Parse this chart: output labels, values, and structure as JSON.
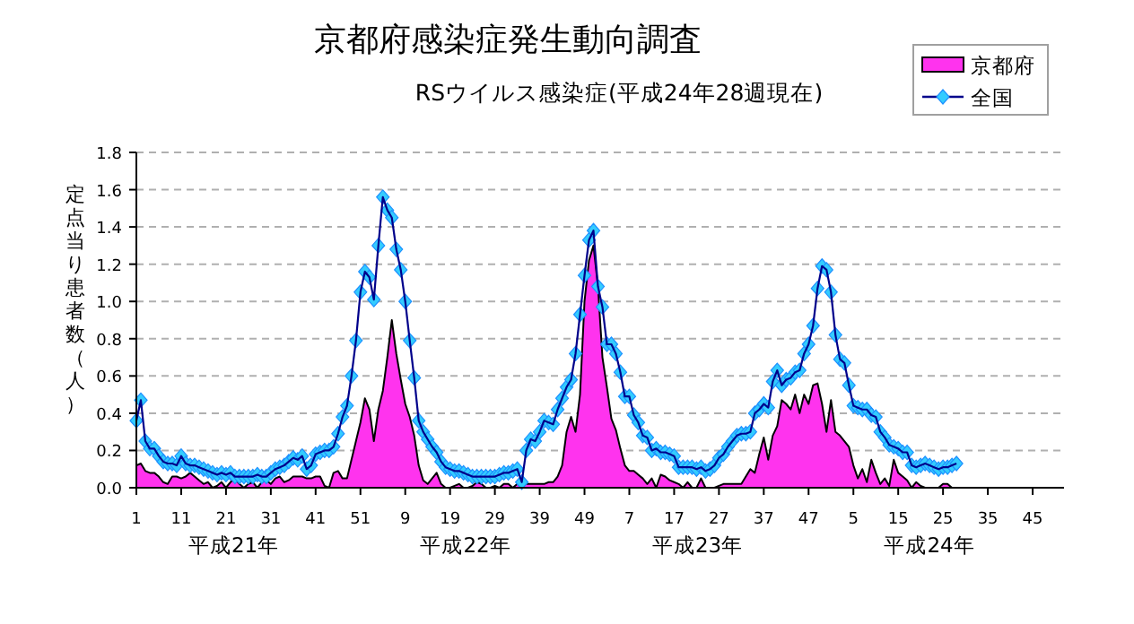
{
  "chart_data": {
    "type": "area",
    "title": "京都府感染症発生動向調査",
    "subtitle": "RSウイルス感染症(平成24年28週現在)",
    "ylabel": "定点当り患者数（人）",
    "annotations": [
      "平成21年",
      "平成22年",
      "平成23年",
      "平成24年"
    ],
    "categories": [
      "1",
      null,
      null,
      null,
      null,
      null,
      null,
      null,
      null,
      null,
      "11",
      null,
      null,
      null,
      null,
      null,
      null,
      null,
      null,
      null,
      "21",
      null,
      null,
      null,
      null,
      null,
      null,
      null,
      null,
      null,
      "31",
      null,
      null,
      null,
      null,
      null,
      null,
      null,
      null,
      null,
      "41",
      null,
      null,
      null,
      null,
      null,
      null,
      null,
      null,
      null,
      "51",
      null,
      null,
      null,
      null,
      null,
      null,
      null,
      null,
      null,
      "9",
      null,
      null,
      null,
      null,
      null,
      null,
      null,
      null,
      null,
      "19",
      null,
      null,
      null,
      null,
      null,
      null,
      null,
      null,
      null,
      "29",
      null,
      null,
      null,
      null,
      null,
      null,
      null,
      null,
      null,
      "39",
      null,
      null,
      null,
      null,
      null,
      null,
      null,
      null,
      null,
      "49",
      null,
      null,
      null,
      null,
      null,
      null,
      null,
      null,
      null,
      "7",
      null,
      null,
      null,
      null,
      null,
      null,
      null,
      null,
      null,
      "17",
      null,
      null,
      null,
      null,
      null,
      null,
      null,
      null,
      null,
      "27",
      null,
      null,
      null,
      null,
      null,
      null,
      null,
      null,
      null,
      "37",
      null,
      null,
      null,
      null,
      null,
      null,
      null,
      null,
      null,
      "47",
      null,
      null,
      null,
      null,
      null,
      null,
      null,
      null,
      null,
      "5",
      null,
      null,
      null,
      null,
      null,
      null,
      null,
      null,
      null,
      "15",
      null,
      null,
      null,
      null,
      null,
      null,
      null,
      null,
      null,
      "25",
      null,
      null,
      null,
      null,
      null,
      null,
      null,
      null,
      null,
      "35",
      null,
      null,
      null,
      null,
      null,
      null,
      null,
      null,
      null,
      "45",
      null,
      null,
      null,
      null,
      null,
      null,
      null
    ],
    "ylim": [
      0,
      1.8
    ],
    "yticks": [
      {
        "value": 0,
        "label": "0.0"
      },
      {
        "value": 0.2,
        "label": "0.2"
      },
      {
        "value": 0.4,
        "label": "0.4"
      },
      {
        "value": 0.6,
        "label": "0.6"
      },
      {
        "value": 0.8,
        "label": "0.8"
      },
      {
        "value": 1.0,
        "label": "1.0"
      },
      {
        "value": 1.2,
        "label": "1.2"
      },
      {
        "value": 1.4,
        "label": "1.4"
      },
      {
        "value": 1.6,
        "label": "1.6"
      },
      {
        "value": 1.8,
        "label": "1.8"
      }
    ],
    "grid": "y",
    "legend": "top right",
    "series": [
      {
        "name": "京都府",
        "color": "#ff33ee",
        "values": [
          0.12,
          0.13,
          0.09,
          0.08,
          0.08,
          0.06,
          0.03,
          0.02,
          0.06,
          0.06,
          0.05,
          0.06,
          0.08,
          0.06,
          0.04,
          0.02,
          0.03,
          0.0,
          0.01,
          0.03,
          0.0,
          0.03,
          0.05,
          0.02,
          0.0,
          0.02,
          0.03,
          0.0,
          0.03,
          0.04,
          0.02,
          0.05,
          0.06,
          0.03,
          0.04,
          0.06,
          0.06,
          0.06,
          0.05,
          0.05,
          0.06,
          0.06,
          0.01,
          0.0,
          0.08,
          0.09,
          0.05,
          0.05,
          0.15,
          0.25,
          0.35,
          0.48,
          0.42,
          0.25,
          0.42,
          0.52,
          0.7,
          0.9,
          0.72,
          0.58,
          0.45,
          0.38,
          0.28,
          0.12,
          0.04,
          0.02,
          0.05,
          0.08,
          0.02,
          0.0,
          0.0,
          0.01,
          0.02,
          0.0,
          0.0,
          0.01,
          0.03,
          0.02,
          0.0,
          0.0,
          0.01,
          0.0,
          0.02,
          0.02,
          0.0,
          0.02,
          0.01,
          0.02,
          0.02,
          0.02,
          0.02,
          0.02,
          0.03,
          0.03,
          0.06,
          0.12,
          0.3,
          0.38,
          0.3,
          0.5,
          1.0,
          1.22,
          1.3,
          1.08,
          0.7,
          0.54,
          0.37,
          0.31,
          0.21,
          0.12,
          0.09,
          0.09,
          0.07,
          0.05,
          0.02,
          0.05,
          0.0,
          0.07,
          0.06,
          0.04,
          0.03,
          0.02,
          0.0,
          0.03,
          0.0,
          0.0,
          0.05,
          0.0,
          0.0,
          0.0,
          0.01,
          0.02,
          0.02,
          0.02,
          0.02,
          0.02,
          0.06,
          0.1,
          0.08,
          0.18,
          0.27,
          0.15,
          0.28,
          0.33,
          0.47,
          0.45,
          0.42,
          0.5,
          0.4,
          0.5,
          0.45,
          0.55,
          0.56,
          0.45,
          0.3,
          0.47,
          0.3,
          0.28,
          0.25,
          0.22,
          0.12,
          0.05,
          0.1,
          0.03,
          0.15,
          0.08,
          0.02,
          0.05,
          0.01,
          0.15,
          0.08,
          0.06,
          0.04,
          0.0,
          0.03,
          0.01,
          0.0,
          0.0,
          0.0,
          0.0,
          0.02,
          0.02,
          0.0,
          0.0,
          null,
          null,
          null,
          null,
          null,
          null,
          null,
          null,
          null,
          null,
          null,
          null,
          null,
          null,
          null,
          null,
          null,
          null,
          null,
          null,
          null,
          null,
          null,
          null
        ]
      },
      {
        "name": "全国",
        "type": "line",
        "marker": "diamond",
        "color": "#33ccff",
        "values": [
          0.36,
          0.47,
          0.25,
          0.21,
          0.21,
          0.17,
          0.14,
          0.13,
          0.13,
          0.12,
          0.17,
          0.13,
          0.12,
          0.12,
          0.11,
          0.1,
          0.09,
          0.08,
          0.07,
          0.08,
          0.07,
          0.08,
          0.06,
          0.06,
          0.06,
          0.06,
          0.06,
          0.07,
          0.06,
          0.06,
          0.08,
          0.1,
          0.11,
          0.12,
          0.14,
          0.16,
          0.15,
          0.17,
          0.1,
          0.12,
          0.18,
          0.19,
          0.2,
          0.2,
          0.22,
          0.29,
          0.38,
          0.44,
          0.6,
          0.79,
          1.05,
          1.16,
          1.13,
          1.01,
          1.3,
          1.56,
          1.49,
          1.45,
          1.28,
          1.17,
          1.0,
          0.79,
          0.59,
          0.36,
          0.3,
          0.26,
          0.22,
          0.19,
          0.14,
          0.11,
          0.1,
          0.09,
          0.09,
          0.08,
          0.07,
          0.06,
          0.06,
          0.06,
          0.06,
          0.06,
          0.06,
          0.07,
          0.08,
          0.08,
          0.09,
          0.1,
          0.03,
          0.2,
          0.26,
          0.25,
          0.3,
          0.36,
          0.35,
          0.34,
          0.42,
          0.48,
          0.54,
          0.58,
          0.72,
          0.93,
          1.14,
          1.33,
          1.38,
          1.08,
          0.97,
          0.77,
          0.77,
          0.72,
          0.62,
          0.49,
          0.49,
          0.39,
          0.35,
          0.28,
          0.27,
          0.2,
          0.21,
          0.19,
          0.19,
          0.18,
          0.17,
          0.11,
          0.11,
          0.11,
          0.11,
          0.1,
          0.11,
          0.09,
          0.1,
          0.12,
          0.16,
          0.18,
          0.22,
          0.25,
          0.28,
          0.29,
          0.29,
          0.3,
          0.4,
          0.42,
          0.45,
          0.43,
          0.57,
          0.63,
          0.55,
          0.58,
          0.59,
          0.62,
          0.63,
          0.72,
          0.77,
          0.87,
          1.07,
          1.19,
          1.17,
          1.05,
          0.82,
          0.69,
          0.67,
          0.55,
          0.44,
          0.43,
          0.42,
          0.42,
          0.39,
          0.38,
          0.3,
          0.27,
          0.23,
          0.22,
          0.21,
          0.19,
          0.19,
          0.12,
          0.11,
          0.12,
          0.13,
          0.12,
          0.11,
          0.1,
          0.11,
          0.11,
          0.12,
          0.13,
          null,
          null,
          null,
          null,
          null,
          null,
          null,
          null,
          null,
          null,
          null,
          null,
          null,
          null,
          null,
          null,
          null,
          null,
          null,
          null,
          null,
          null,
          null,
          null
        ]
      }
    ]
  }
}
